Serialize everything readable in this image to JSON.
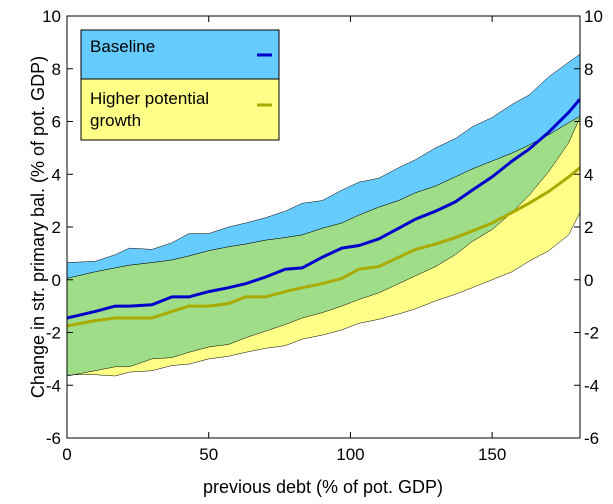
{
  "chart_data": {
    "type": "area",
    "xlabel": "previous debt (% of pot. GDP)",
    "ylabel": "Change in str. primary bal. (% of pot. GDP)",
    "xlim": [
      0,
      181
    ],
    "ylim": [
      -6,
      10
    ],
    "xticks": [
      0,
      50,
      100,
      150
    ],
    "yticks": [
      -6,
      -4,
      -2,
      0,
      2,
      4,
      6,
      8,
      10
    ],
    "x": [
      0,
      10,
      17,
      22,
      30,
      37,
      43,
      50,
      57,
      63,
      70,
      77,
      83,
      90,
      97,
      103,
      110,
      117,
      123,
      130,
      137,
      143,
      150,
      157,
      163,
      170,
      177,
      181
    ],
    "series": [
      {
        "name": "Baseline",
        "color": "#0000cc",
        "band_color": "#66ccff",
        "mean": [
          -1.45,
          -1.2,
          -1.0,
          -1.0,
          -0.95,
          -0.65,
          -0.65,
          -0.45,
          -0.3,
          -0.15,
          0.1,
          0.4,
          0.45,
          0.85,
          1.2,
          1.3,
          1.55,
          1.95,
          2.3,
          2.6,
          2.95,
          3.4,
          3.9,
          4.5,
          4.95,
          5.6,
          6.35,
          6.85
        ],
        "upper": [
          0.65,
          0.7,
          0.95,
          1.2,
          1.15,
          1.4,
          1.75,
          1.75,
          2.0,
          2.15,
          2.35,
          2.6,
          2.9,
          3.0,
          3.4,
          3.7,
          3.85,
          4.25,
          4.55,
          5.0,
          5.35,
          5.8,
          6.15,
          6.65,
          7.0,
          7.7,
          8.25,
          8.55
        ],
        "lower": [
          -3.65,
          -3.45,
          -3.3,
          -3.3,
          -3.0,
          -2.95,
          -2.75,
          -2.55,
          -2.45,
          -2.2,
          -1.95,
          -1.7,
          -1.45,
          -1.25,
          -1.0,
          -0.75,
          -0.5,
          -0.15,
          0.15,
          0.5,
          0.95,
          1.45,
          1.9,
          2.55,
          3.2,
          4.1,
          5.2,
          6.15
        ]
      },
      {
        "name": "Higher potential growth",
        "color": "#aaaa00",
        "band_color": "#ffff88",
        "mean": [
          -1.75,
          -1.55,
          -1.45,
          -1.45,
          -1.45,
          -1.2,
          -1.0,
          -1.0,
          -0.9,
          -0.65,
          -0.65,
          -0.45,
          -0.3,
          -0.15,
          0.05,
          0.4,
          0.5,
          0.85,
          1.15,
          1.35,
          1.6,
          1.85,
          2.15,
          2.55,
          2.9,
          3.35,
          3.9,
          4.25
        ],
        "upper": [
          0.05,
          0.3,
          0.45,
          0.55,
          0.65,
          0.75,
          0.9,
          1.1,
          1.25,
          1.35,
          1.5,
          1.6,
          1.7,
          1.95,
          2.15,
          2.45,
          2.75,
          3.0,
          3.3,
          3.55,
          3.9,
          4.2,
          4.5,
          4.8,
          5.1,
          5.5,
          5.95,
          6.2
        ],
        "lower": [
          -3.6,
          -3.6,
          -3.65,
          -3.5,
          -3.45,
          -3.25,
          -3.2,
          -3.0,
          -2.9,
          -2.75,
          -2.6,
          -2.5,
          -2.25,
          -2.1,
          -1.9,
          -1.65,
          -1.5,
          -1.3,
          -1.1,
          -0.8,
          -0.55,
          -0.3,
          0.0,
          0.3,
          0.7,
          1.1,
          1.7,
          2.55
        ]
      }
    ],
    "legend": {
      "placement": "top-left",
      "entries": [
        {
          "label": "Baseline",
          "box_color": "#66ccff",
          "line_color": "#0000cc"
        },
        {
          "label_lines": [
            "Higher potential",
            "growth"
          ],
          "box_color": "#ffff88",
          "line_color": "#aaaa00"
        }
      ]
    },
    "overlap_color": "#9fdd88",
    "grid": false,
    "right_axis_mirrored": true
  }
}
